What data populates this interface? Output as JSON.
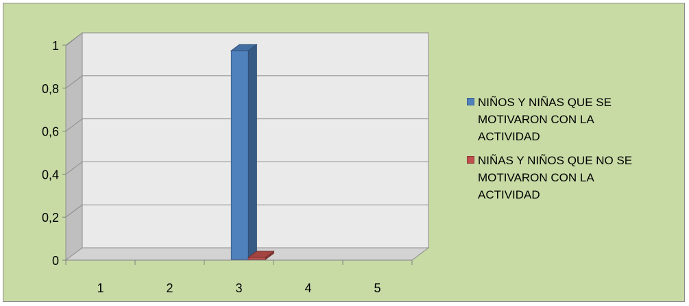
{
  "chart_data": {
    "type": "bar",
    "categories": [
      "1",
      "2",
      "3",
      "4",
      "5"
    ],
    "series": [
      {
        "name": "NIÑOS Y NIÑAS QUE SE MOTIVARON CON LA ACTIVIDAD",
        "values": [
          0,
          0,
          1,
          0,
          0
        ],
        "color": "#4f81bd"
      },
      {
        "name": "NIÑAS Y NIÑOS QUE NO SE MOTIVARON CON LA ACTIVIDAD",
        "values": [
          0,
          0,
          0,
          0,
          0
        ],
        "color": "#c0504d"
      }
    ],
    "title": "",
    "xlabel": "",
    "ylabel": "",
    "ylim": [
      0,
      1
    ],
    "yticks": [
      "0",
      "0,2",
      "0,4",
      "0,6",
      "0,8",
      "1"
    ],
    "grid": true,
    "three_d": true,
    "legend_position": "right",
    "background_color": "#c8dba5",
    "plot_wall_color": "#eaeaea"
  },
  "legend": {
    "items": [
      {
        "line1": "NIÑOS Y NIÑAS QUE SE",
        "line2": "MOTIVARON CON LA",
        "line3": "ACTIVIDAD"
      },
      {
        "line1": "NIÑAS Y NIÑOS QUE NO SE",
        "line2": "MOTIVARON CON LA",
        "line3": "ACTIVIDAD"
      }
    ]
  }
}
